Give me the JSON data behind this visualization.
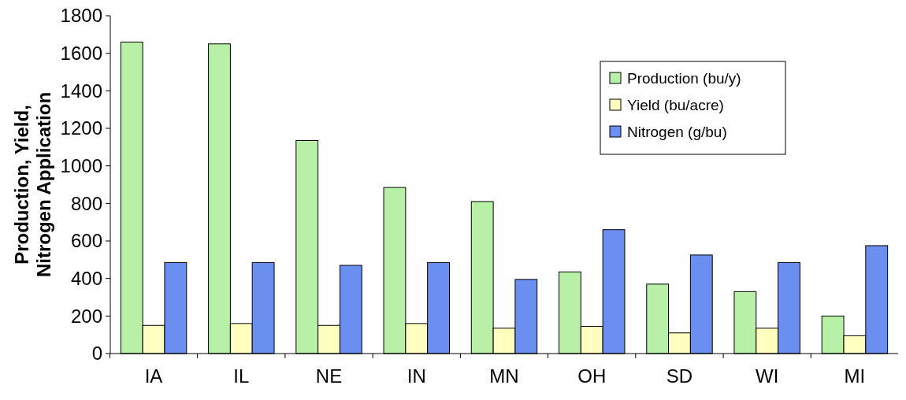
{
  "chart_data": {
    "type": "bar",
    "ylabel": "Production, Yield,\nNitrogen Application",
    "categories": [
      "IA",
      "IL",
      "NE",
      "IN",
      "MN",
      "OH",
      "SD",
      "WI",
      "MI"
    ],
    "series": [
      {
        "name": "Production (bu/y)",
        "color": "#b8f0a8",
        "values": [
          1660,
          1650,
          1135,
          885,
          810,
          435,
          370,
          330,
          200
        ]
      },
      {
        "name": "Yield (bu/acre)",
        "color": "#ffffc0",
        "values": [
          150,
          160,
          150,
          160,
          135,
          145,
          110,
          135,
          95
        ]
      },
      {
        "name": "Nitrogen (g/bu)",
        "color": "#6a8ff0",
        "values": [
          485,
          485,
          470,
          485,
          395,
          660,
          525,
          485,
          575
        ]
      }
    ],
    "ylim": [
      0,
      1800
    ],
    "yticks": [
      0,
      200,
      400,
      600,
      800,
      1000,
      1200,
      1400,
      1600,
      1800
    ],
    "grid": false,
    "legend": "top right"
  }
}
